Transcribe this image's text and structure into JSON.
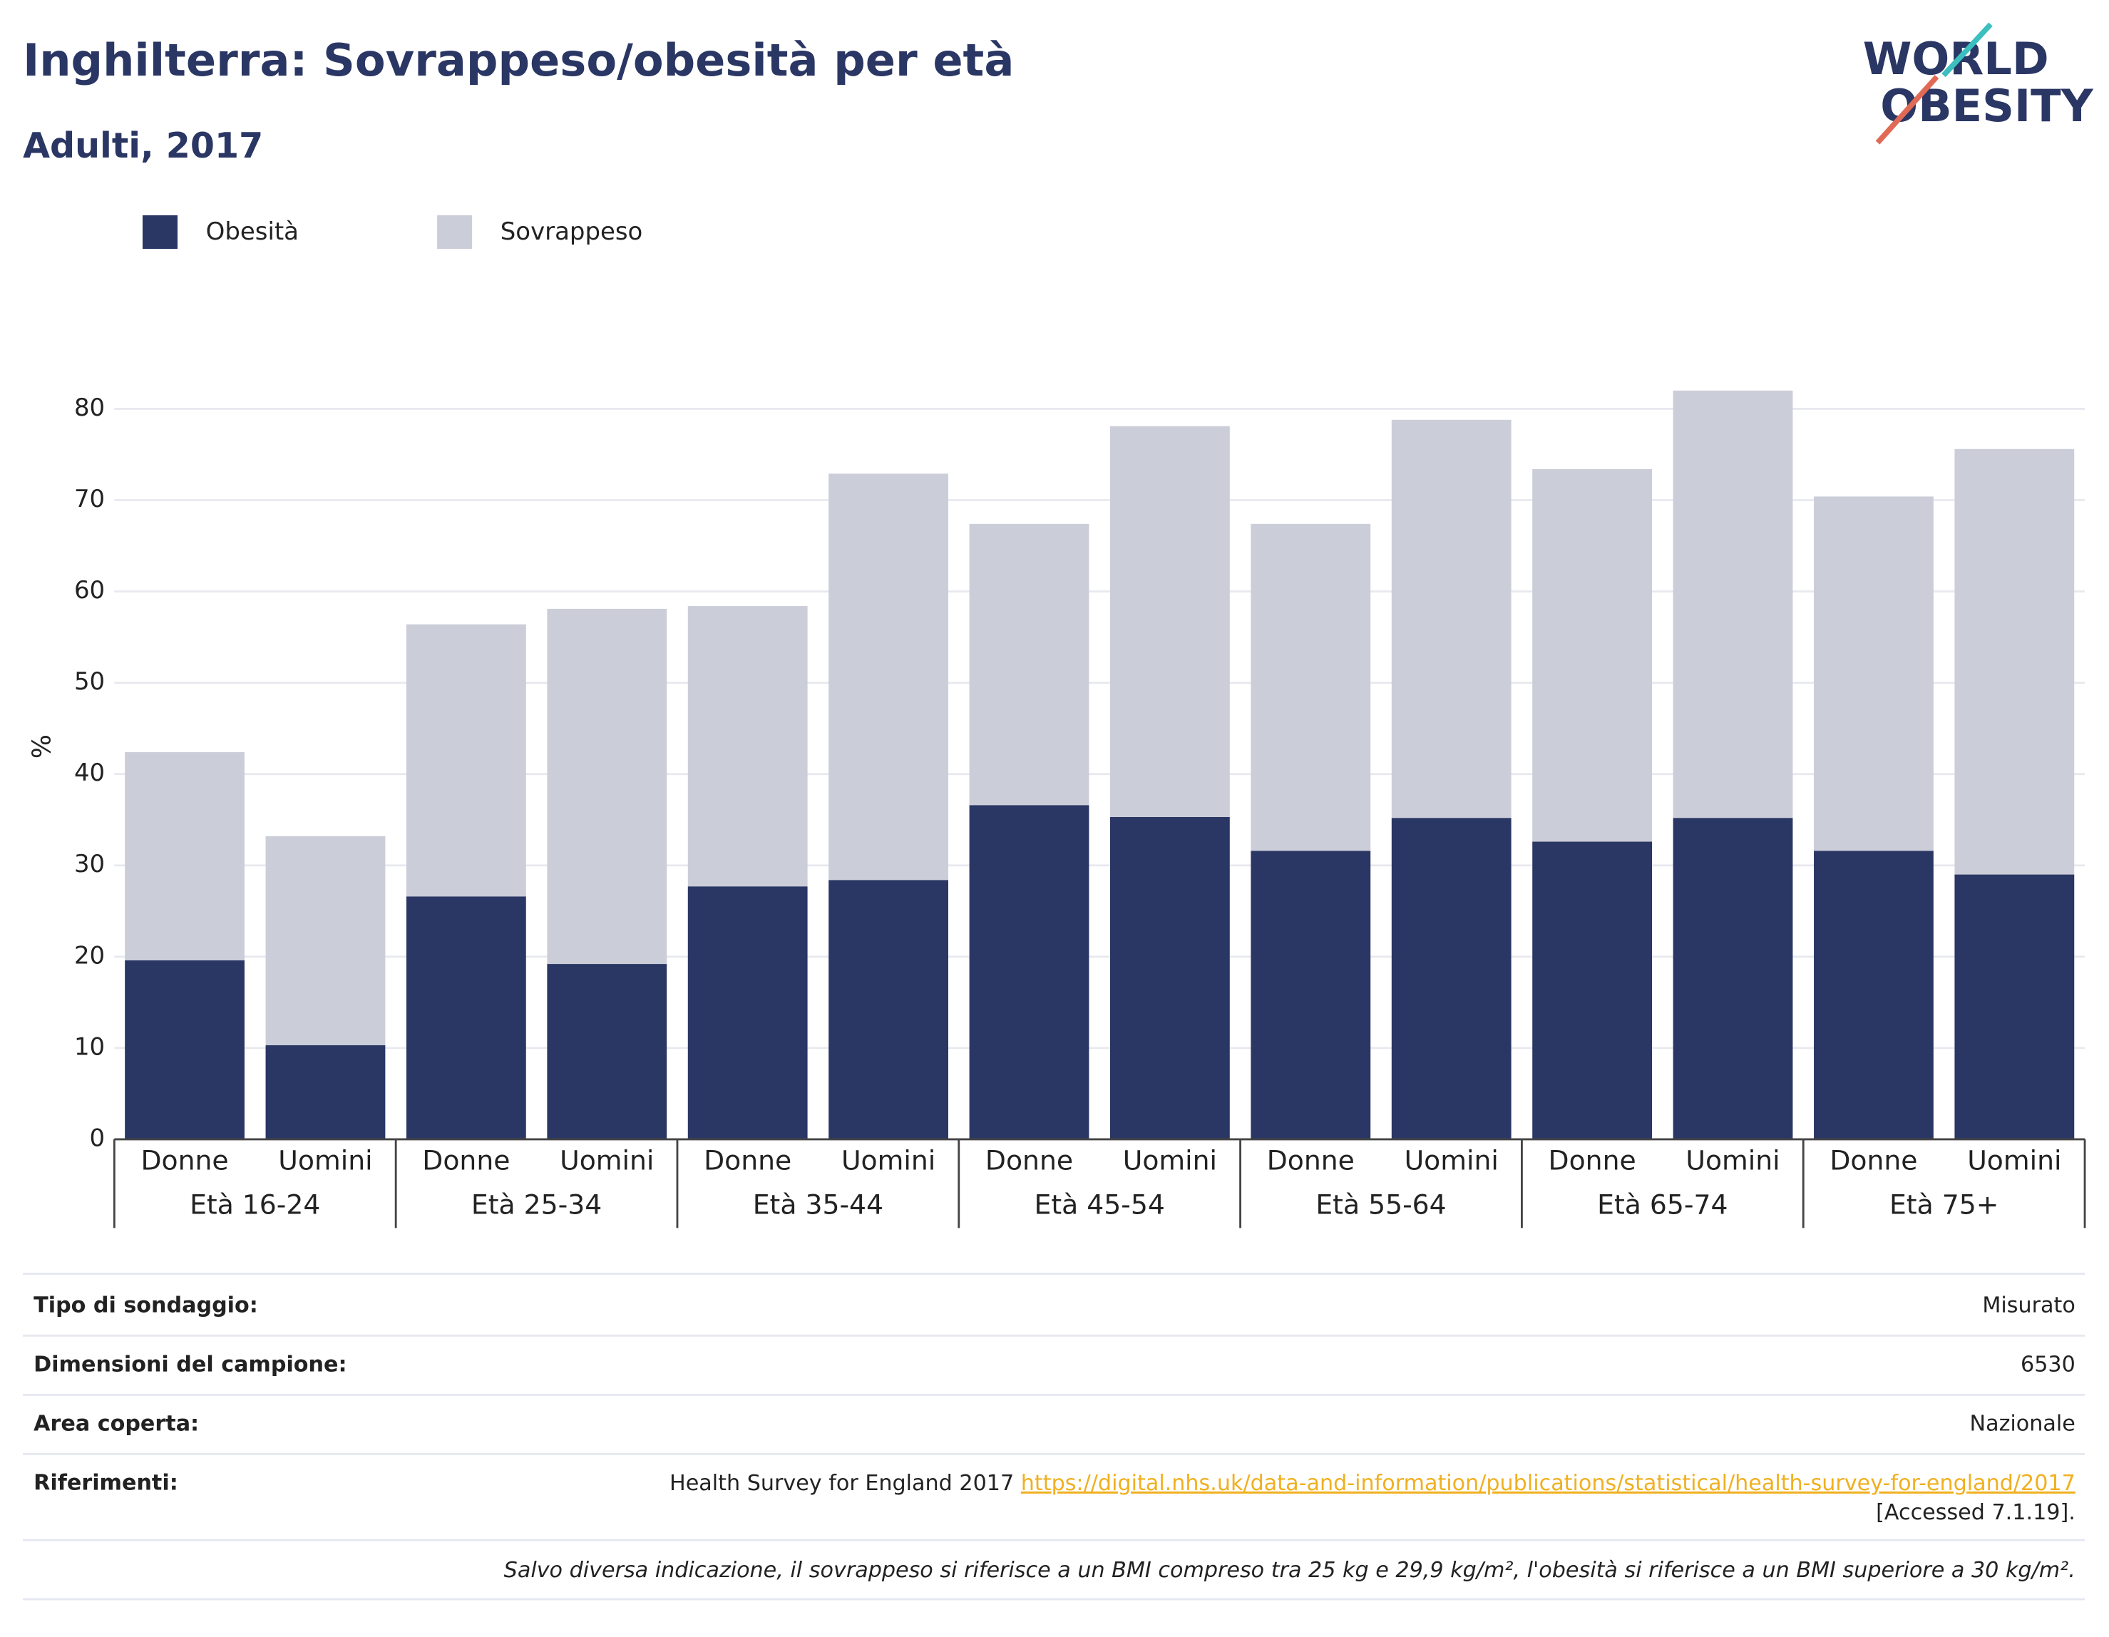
{
  "chart_data": {
    "type": "stacked_bar",
    "title": "Inghilterra: Sovrappeso/obesità per età",
    "subtitle": "Adulti, 2017",
    "y_label": "%",
    "categories": [
      "Donne",
      "Uomini",
      "Donne",
      "Uomini",
      "Donne",
      "Uomini",
      "Donne",
      "Uomini",
      "Donne",
      "Uomini",
      "Donne",
      "Uomini",
      "Donne",
      "Uomini"
    ],
    "groups": [
      "Età 16-24",
      "Età 25-34",
      "Età 35-44",
      "Età 45-54",
      "Età 55-64",
      "Età 65-74",
      "Età 75+"
    ],
    "series": [
      {
        "name": "Obesità",
        "color": "#2a3663",
        "values": [
          19.6,
          10.3,
          26.6,
          19.2,
          27.7,
          28.4,
          36.6,
          35.3,
          31.6,
          35.2,
          32.6,
          35.2,
          31.6,
          29.0
        ]
      },
      {
        "name": "Sovrappeso",
        "color": "#cbcdd8",
        "values": [
          22.8,
          22.9,
          29.8,
          38.9,
          30.7,
          44.5,
          30.8,
          42.8,
          35.8,
          43.6,
          40.8,
          46.8,
          38.8,
          46.6
        ]
      }
    ],
    "ylim": [
      0,
      85
    ],
    "yticks": [
      0,
      10,
      20,
      30,
      40,
      50,
      60,
      70,
      80
    ],
    "grid": true
  },
  "logo": {
    "line1": "WORLD",
    "line2": "OBESITY"
  },
  "info": {
    "rows": [
      {
        "label": "Tipo di sondaggio:",
        "value": "Misurato"
      },
      {
        "label": "Dimensioni del campione:",
        "value": "6530"
      },
      {
        "label": "Area coperta:",
        "value": "Nazionale"
      }
    ],
    "references": {
      "label": "Riferimenti:",
      "text": "Health Survey for England 2017",
      "link": "https://digital.nhs.uk/data-and-information/publications/statistical/health-survey-for-england/2017",
      "accessed": "[Accessed 7.1.19]."
    },
    "note": "Salvo diversa indicazione, il sovrappeso si riferisce a un BMI compreso tra 25 kg e 29,9 kg/m², l'obesità si riferisce a un BMI superiore a 30 kg/m²."
  }
}
